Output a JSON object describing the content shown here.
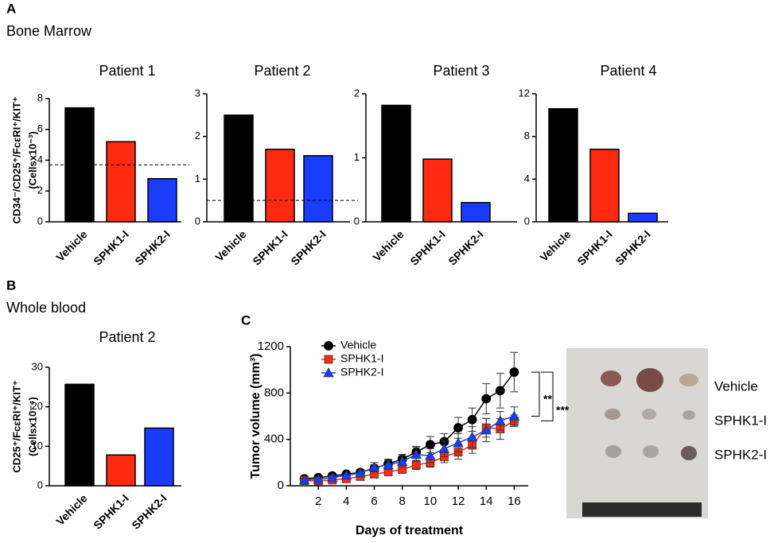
{
  "panels": [
    {
      "label": "A",
      "subtitle": "Bone Marrow"
    },
    {
      "label": "B",
      "subtitle": "Whole blood"
    },
    {
      "label": "C"
    }
  ],
  "chart_data": [
    {
      "type": "bar",
      "title": "Patient 1",
      "ylabel": [
        "CD34⁻/CD25⁺/FcεRI⁺/KIT⁺",
        "(Cellsx10⁻³)"
      ],
      "categories": [
        "Vehicle",
        "SPHK1-I",
        "SPHK2-I"
      ],
      "values": [
        7.4,
        5.2,
        2.8
      ],
      "colors": [
        "#000000",
        "#ff2a10",
        "#1a3cff"
      ],
      "ylim": [
        0,
        8
      ],
      "yticks": [
        0,
        2,
        4,
        6,
        8
      ],
      "reference_line": 3.7
    },
    {
      "type": "bar",
      "title": "Patient 2",
      "categories": [
        "Vehicle",
        "SPHK1-I",
        "SPHK2-I"
      ],
      "values": [
        2.5,
        1.7,
        1.55
      ],
      "colors": [
        "#000000",
        "#ff2a10",
        "#1a3cff"
      ],
      "ylim": [
        0,
        3
      ],
      "yticks": [
        0,
        1,
        2,
        3
      ],
      "reference_line": 0.5
    },
    {
      "type": "bar",
      "title": "Patient 3",
      "categories": [
        "Vehicle",
        "SPHK1-I",
        "SPHK2-I"
      ],
      "values": [
        1.82,
        0.98,
        0.3
      ],
      "colors": [
        "#000000",
        "#ff2a10",
        "#1a3cff"
      ],
      "ylim": [
        0,
        2
      ],
      "yticks": [
        0,
        1,
        2
      ]
    },
    {
      "type": "bar",
      "title": "Patient 4",
      "categories": [
        "Vehicle",
        "SPHK1-I",
        "SPHK2-I"
      ],
      "values": [
        10.6,
        6.8,
        0.8
      ],
      "colors": [
        "#000000",
        "#ff2a10",
        "#1a3cff"
      ],
      "ylim": [
        0,
        12
      ],
      "yticks": [
        0,
        4,
        8,
        12
      ]
    },
    {
      "type": "bar",
      "title": "Patient 2",
      "ylabel": [
        "CD25⁺/FcεRI⁺/KIT⁺",
        "(Cellsx10⁻⁴)"
      ],
      "categories": [
        "Vehicle",
        "SPHK1-I",
        "SPHK2-I"
      ],
      "values": [
        25.7,
        7.8,
        14.6
      ],
      "colors": [
        "#000000",
        "#ff2a10",
        "#1a3cff"
      ],
      "ylim": [
        0,
        30
      ],
      "yticks": [
        0,
        10,
        20,
        30
      ]
    },
    {
      "type": "line",
      "ylabel": "Tumor volume (mm³)",
      "xlabel": "Days of treatment",
      "x": [
        1,
        2,
        3,
        4,
        5,
        6,
        7,
        8,
        9,
        10,
        11,
        12,
        13,
        14,
        15,
        16
      ],
      "xlim": [
        0,
        17
      ],
      "xticks": [
        2,
        4,
        6,
        8,
        10,
        12,
        14,
        16
      ],
      "ylim": [
        0,
        1200
      ],
      "yticks": [
        0,
        400,
        800,
        1200
      ],
      "series": [
        {
          "name": "Vehicle",
          "color": "#000000",
          "marker": "circle",
          "values": [
            60,
            70,
            85,
            100,
            115,
            150,
            190,
            230,
            290,
            355,
            380,
            500,
            570,
            750,
            820,
            980
          ],
          "errors": [
            15,
            15,
            20,
            20,
            25,
            30,
            40,
            40,
            50,
            70,
            70,
            90,
            100,
            130,
            150,
            170
          ]
        },
        {
          "name": "SPHK1-I",
          "color": "#ff2a10",
          "marker": "square",
          "values": [
            45,
            40,
            50,
            60,
            80,
            100,
            120,
            140,
            180,
            200,
            250,
            290,
            350,
            500,
            490,
            560
          ],
          "errors": [
            10,
            10,
            15,
            15,
            20,
            25,
            30,
            30,
            40,
            40,
            50,
            60,
            70,
            80,
            90,
            50
          ]
        },
        {
          "name": "SPHK2-I",
          "color": "#1a3cff",
          "marker": "triangle",
          "values": [
            50,
            55,
            70,
            90,
            110,
            160,
            180,
            210,
            270,
            260,
            320,
            370,
            420,
            480,
            560,
            600
          ],
          "errors": [
            15,
            15,
            20,
            20,
            20,
            40,
            40,
            50,
            60,
            60,
            70,
            80,
            90,
            100,
            80,
            80
          ]
        }
      ],
      "annotations": [
        "**",
        "***"
      ]
    }
  ],
  "photo": {
    "labels": [
      "Vehicle",
      "SPHK1-I",
      "SPHK2-I"
    ]
  }
}
